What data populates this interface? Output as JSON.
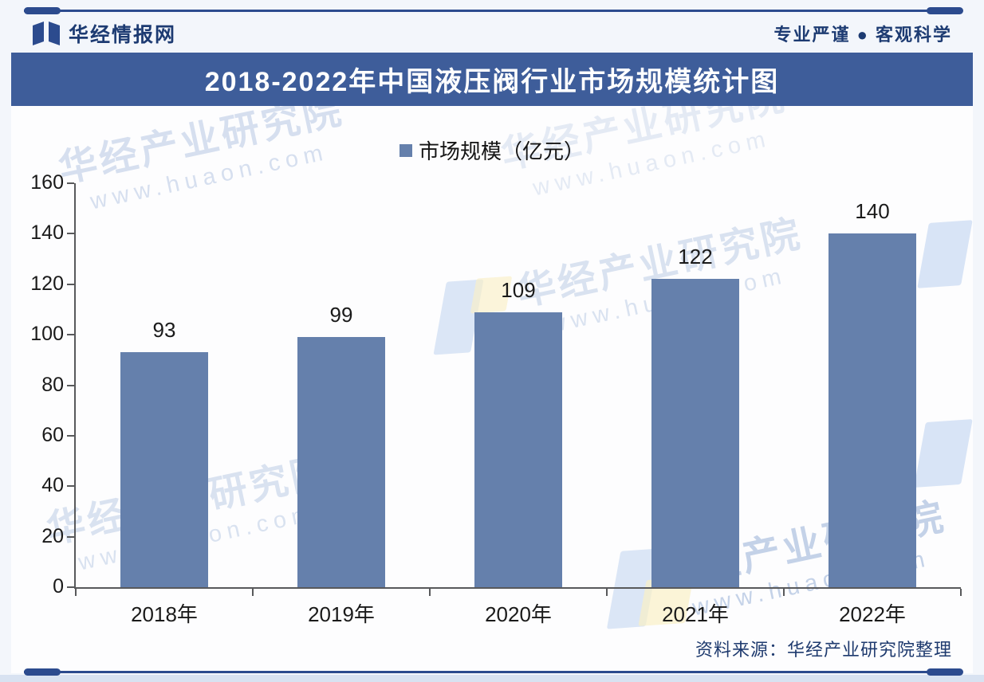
{
  "header": {
    "brand": "华经情报网",
    "slogan": "专业严谨 ● 客观科学"
  },
  "banner": {
    "title": "2018-2022年中国液压阀行业市场规模统计图"
  },
  "legend": {
    "label": "市场规模（亿元）"
  },
  "chart_data": {
    "type": "bar",
    "title": "2018-2022年中国液压阀行业市场规模统计图",
    "categories": [
      "2018年",
      "2019年",
      "2020年",
      "2021年",
      "2022年"
    ],
    "values": [
      93,
      99,
      109,
      122,
      140
    ],
    "series_name": "市场规模（亿元）",
    "xlabel": "",
    "ylabel": "",
    "ylim": [
      0,
      160
    ],
    "yticks": [
      0,
      20,
      40,
      60,
      80,
      100,
      120,
      140,
      160
    ],
    "grid": false,
    "legend_position": "top-center",
    "value_labels_shown": true,
    "bar_color": "#6580ac"
  },
  "footer": {
    "source": "资料来源：华经产业研究院整理"
  },
  "watermark": {
    "line1": "华经产业研究院",
    "line2": "www.huaon.com"
  },
  "colors": {
    "banner_bg": "#3e5d9a",
    "bar": "#6580ac",
    "accent_line": "#2c4b8e",
    "header_text": "#1d3b72",
    "axis": "#58595b",
    "watermark_text": "#b7c8e3"
  }
}
